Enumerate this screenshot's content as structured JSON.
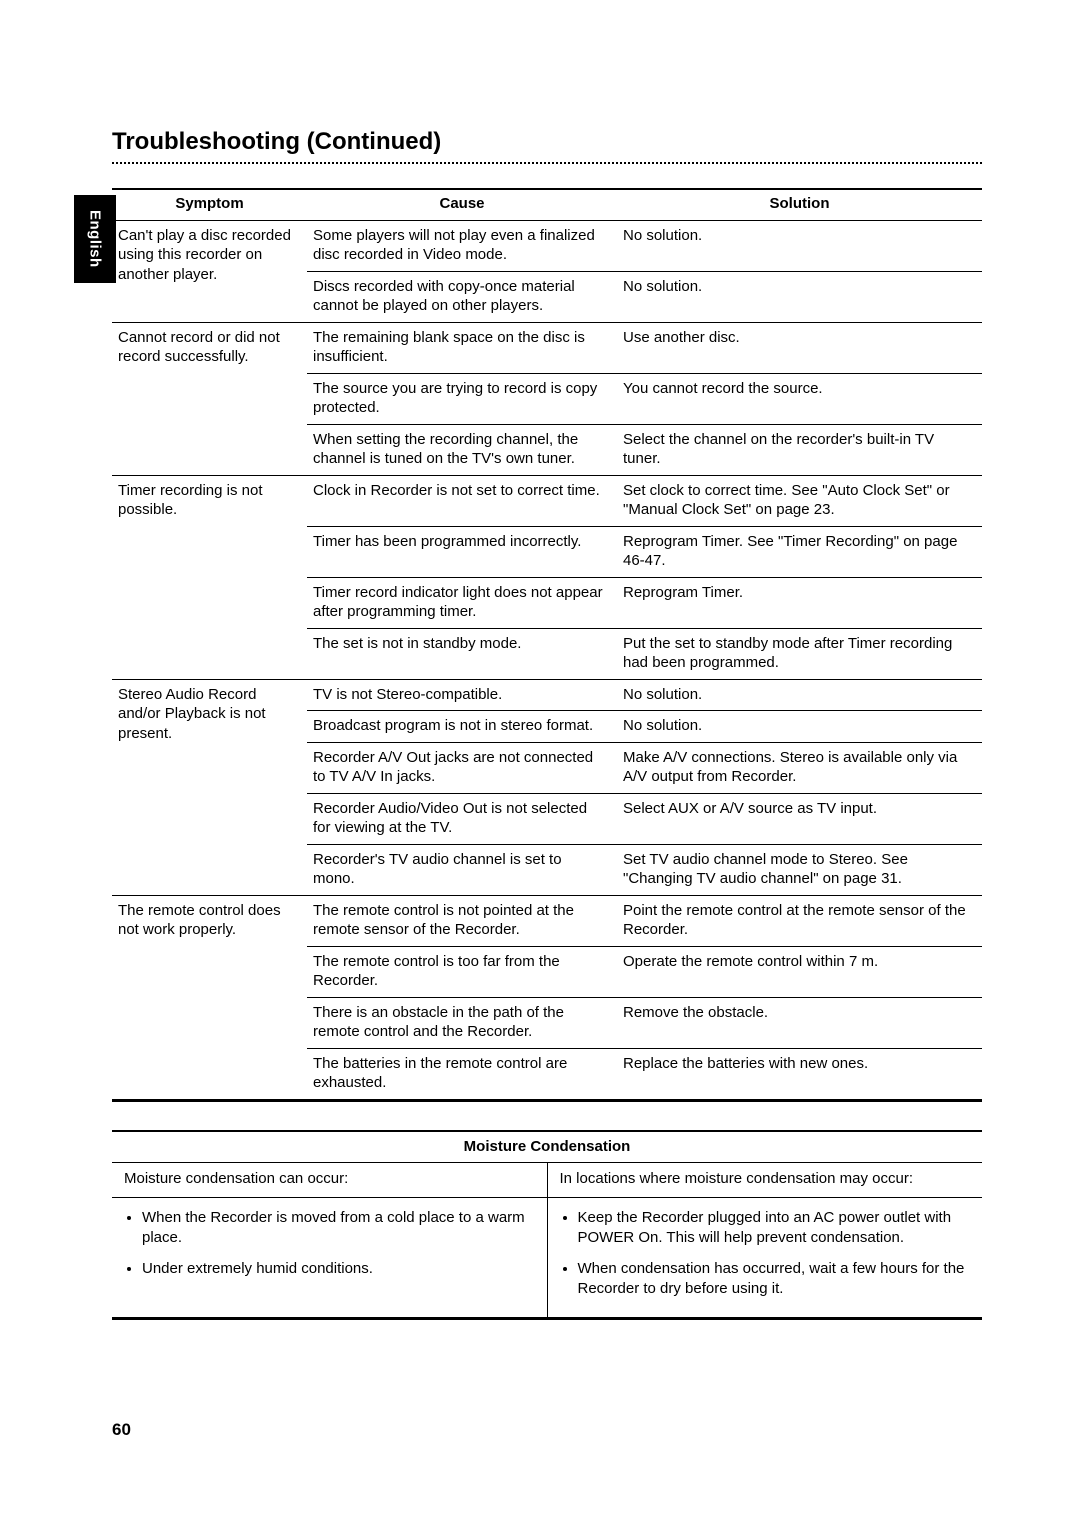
{
  "lang_tab": "English",
  "title": "Troubleshooting (Continued)",
  "headers": {
    "symptom": "Symptom",
    "cause": "Cause",
    "solution": "Solution"
  },
  "rows": [
    {
      "s": "Can't play a disc recorded using this recorder on another player.",
      "s_rowspan": 2,
      "c": "Some players will not play even a finalized disc recorded in Video mode.",
      "sol": "No solution."
    },
    {
      "c": "Discs recorded with copy-once material cannot be played on other players.",
      "sol": "No solution."
    },
    {
      "s": "Cannot record or did not record successfully.",
      "s_rowspan": 3,
      "c": "The remaining blank space on the disc is insufficient.",
      "sol": "Use another disc."
    },
    {
      "c": "The source you are trying to record is copy protected.",
      "sol": "You cannot record the source."
    },
    {
      "c": "When setting the recording channel, the channel is tuned on the TV's own tuner.",
      "sol": "Select the channel on the recorder's built-in TV tuner."
    },
    {
      "s": "Timer recording is not possible.",
      "s_rowspan": 4,
      "c": "Clock in Recorder is not set to correct time.",
      "sol": "Set clock to correct time. See \"Auto Clock Set\" or \"Manual Clock Set\" on page 23."
    },
    {
      "c": "Timer has been programmed incorrectly.",
      "sol": "Reprogram Timer. See \"Timer Recording\" on page 46-47."
    },
    {
      "c": "Timer record indicator light does not appear after programming timer.",
      "sol": "Reprogram Timer."
    },
    {
      "c": "The set is not in standby mode.",
      "sol": "Put the set to standby mode after Timer recording had been programmed."
    },
    {
      "s": "Stereo Audio Record and/or Playback is not present.",
      "s_rowspan": 5,
      "c": "TV is not Stereo-compatible.",
      "sol": "No solution."
    },
    {
      "c": "Broadcast program is not in stereo format.",
      "sol": "No solution."
    },
    {
      "c": "Recorder A/V Out jacks are not connected to TV A/V In jacks.",
      "sol": "Make A/V connections. Stereo is available only via A/V output from Recorder."
    },
    {
      "c": "Recorder Audio/Video Out is not selected for viewing at the TV.",
      "sol": "Select AUX or A/V source as TV input."
    },
    {
      "c": "Recorder's TV audio channel is set to mono.",
      "sol": "Set TV audio channel mode to Stereo. See \"Changing TV audio channel\" on page 31."
    },
    {
      "s": "The remote control does not work properly.",
      "s_rowspan": 4,
      "c": "The remote control is not pointed at the remote sensor of the Recorder.",
      "sol": "Point the remote control at the remote sensor of the Recorder."
    },
    {
      "c": "The remote control is too far from the Recorder.",
      "sol": "Operate the remote control within 7 m."
    },
    {
      "c": "There is an obstacle in the path of the remote control and the Recorder.",
      "sol": "Remove the obstacle."
    },
    {
      "c": "The batteries in the remote control are exhausted.",
      "sol": "Replace the batteries with new ones."
    }
  ],
  "moisture": {
    "title": "Moisture Condensation",
    "left_heading": "Moisture condensation can occur:",
    "right_heading": "In locations where moisture condensation may occur:",
    "left_items": [
      "When the Recorder is moved from a cold place to a warm place.",
      "Under extremely humid conditions."
    ],
    "right_items": [
      "Keep the Recorder plugged into an AC power outlet with POWER On. This will help prevent condensation.",
      "When condensation has occurred, wait a few hours for the Recorder to dry before using it."
    ]
  },
  "page_number": "60"
}
